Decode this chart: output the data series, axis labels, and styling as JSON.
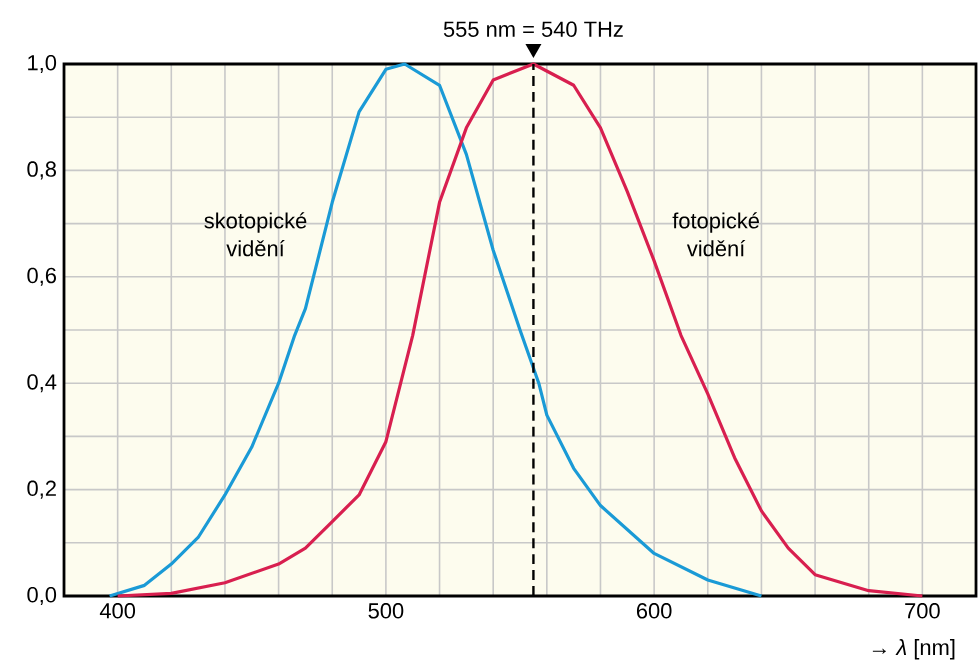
{
  "chart_data": {
    "type": "line",
    "xlabel": "→ *λ* [nm]",
    "x": [
      397,
      410,
      420,
      430,
      440,
      450,
      460,
      466,
      470,
      480,
      490,
      500,
      507,
      520,
      530,
      540,
      550,
      557,
      560,
      570,
      580,
      600,
      620,
      640
    ],
    "series": [
      {
        "name": "skotopické vidění",
        "color": "#1a9ad6",
        "values": [
          0,
          0.02,
          0.06,
          0.11,
          0.19,
          0.28,
          0.4,
          0.49,
          0.54,
          0.74,
          0.91,
          0.99,
          1.0,
          0.96,
          0.83,
          0.65,
          0.5,
          0.4,
          0.34,
          0.24,
          0.17,
          0.08,
          0.03,
          0
        ]
      },
      {
        "name": "fotopické vidění",
        "color": "#d81f4f",
        "x": [
          400,
          420,
          440,
          460,
          470,
          480,
          490,
          500,
          510,
          520,
          530,
          540,
          555,
          570,
          580,
          590,
          600,
          610,
          620,
          630,
          640,
          650,
          660,
          680,
          700
        ],
        "values": [
          0,
          0.005,
          0.025,
          0.06,
          0.09,
          0.14,
          0.19,
          0.29,
          0.49,
          0.74,
          0.88,
          0.97,
          1.0,
          0.96,
          0.88,
          0.76,
          0.63,
          0.49,
          0.38,
          0.26,
          0.16,
          0.09,
          0.04,
          0.01,
          0
        ]
      }
    ],
    "xlim": [
      380,
      720
    ],
    "ylim": [
      0,
      1
    ],
    "xticks": [
      400,
      {
        "value": 420,
        "label": null
      },
      {
        "value": 440,
        "label": null
      },
      {
        "value": 460,
        "label": null
      },
      {
        "value": 480,
        "label": null
      },
      500,
      {
        "value": 520,
        "label": null
      },
      {
        "value": 540,
        "label": null
      },
      {
        "value": 560,
        "label": null
      },
      {
        "value": 580,
        "label": null
      },
      600,
      {
        "value": 620,
        "label": null
      },
      {
        "value": 640,
        "label": null
      },
      {
        "value": 660,
        "label": null
      },
      {
        "value": 680,
        "label": null
      },
      700
    ],
    "yticks": [
      {
        "value": 0,
        "label": "0,0"
      },
      {
        "value": 0.1,
        "label": null
      },
      {
        "value": 0.2,
        "label": "0,2"
      },
      {
        "value": 0.3,
        "label": null
      },
      {
        "value": 0.4,
        "label": "0,4"
      },
      {
        "value": 0.5,
        "label": null
      },
      {
        "value": 0.6,
        "label": "0,6"
      },
      {
        "value": 0.7,
        "label": null
      },
      {
        "value": 0.8,
        "label": "0,8"
      },
      {
        "value": 0.9,
        "label": null
      },
      {
        "value": 1.0,
        "label": "1,0"
      }
    ],
    "ref_lines": [
      {
        "axis": "x",
        "value": 555,
        "label": "555 nm = 540 THz",
        "color": "#000000",
        "line_style": "dashed"
      }
    ],
    "grid": true,
    "legend": false,
    "marker": "none",
    "line_style": "solid"
  }
}
